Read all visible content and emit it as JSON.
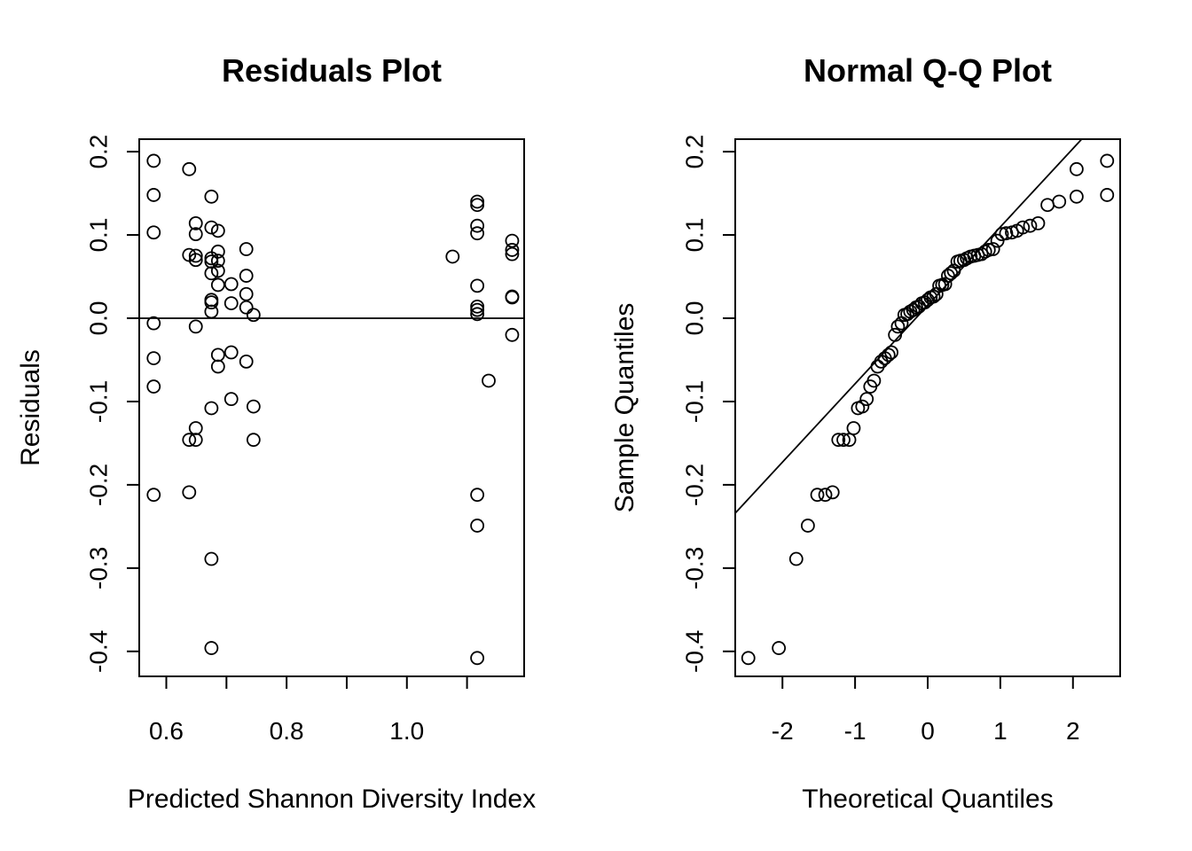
{
  "chart_data": [
    {
      "type": "scatter",
      "title": "Residuals Plot",
      "xlabel": "Predicted Shannon Diversity Index",
      "ylabel": "Residuals",
      "xlim": [
        0.555,
        1.195
      ],
      "ylim": [
        -0.43,
        0.215
      ],
      "xticks": [
        0.6,
        0.7,
        0.8,
        0.9,
        1.0,
        1.1
      ],
      "xtick_labels": [
        "0.6",
        "",
        "0.8",
        "",
        "1.0",
        ""
      ],
      "yticks": [
        -0.4,
        -0.3,
        -0.2,
        -0.1,
        0.0,
        0.1,
        0.2
      ],
      "ytick_labels": [
        "-0.4",
        "-0.3",
        "-0.2",
        "-0.1",
        "0.0",
        "0.1",
        "0.2"
      ],
      "reference_line": {
        "type": "horizontal",
        "y": 0
      },
      "grid": false,
      "points": [
        [
          0.579,
          0.189
        ],
        [
          0.579,
          0.148
        ],
        [
          0.579,
          0.103
        ],
        [
          0.579,
          -0.006
        ],
        [
          0.579,
          -0.048
        ],
        [
          0.579,
          -0.082
        ],
        [
          0.579,
          -0.212
        ],
        [
          0.638,
          0.179
        ],
        [
          0.638,
          0.076
        ],
        [
          0.638,
          -0.146
        ],
        [
          0.638,
          -0.209
        ],
        [
          0.649,
          0.114
        ],
        [
          0.649,
          0.101
        ],
        [
          0.649,
          0.075
        ],
        [
          0.649,
          0.07
        ],
        [
          0.649,
          -0.01
        ],
        [
          0.649,
          -0.132
        ],
        [
          0.649,
          -0.146
        ],
        [
          0.675,
          0.146
        ],
        [
          0.675,
          0.109
        ],
        [
          0.675,
          0.072
        ],
        [
          0.675,
          0.068
        ],
        [
          0.675,
          0.054
        ],
        [
          0.675,
          0.022
        ],
        [
          0.675,
          0.019
        ],
        [
          0.675,
          0.008
        ],
        [
          0.675,
          -0.108
        ],
        [
          0.675,
          -0.289
        ],
        [
          0.675,
          -0.396
        ],
        [
          0.686,
          0.105
        ],
        [
          0.686,
          0.08
        ],
        [
          0.686,
          0.069
        ],
        [
          0.686,
          0.057
        ],
        [
          0.686,
          0.04
        ],
        [
          0.686,
          -0.044
        ],
        [
          0.686,
          -0.058
        ],
        [
          0.708,
          0.041
        ],
        [
          0.708,
          0.018
        ],
        [
          0.708,
          -0.041
        ],
        [
          0.708,
          -0.097
        ],
        [
          0.733,
          0.083
        ],
        [
          0.733,
          0.051
        ],
        [
          0.733,
          0.029
        ],
        [
          0.733,
          0.013
        ],
        [
          0.733,
          -0.052
        ],
        [
          0.745,
          0.004
        ],
        [
          0.745,
          -0.106
        ],
        [
          0.745,
          -0.146
        ],
        [
          1.076,
          0.074
        ],
        [
          1.117,
          0.14
        ],
        [
          1.117,
          0.136
        ],
        [
          1.117,
          0.111
        ],
        [
          1.117,
          0.102
        ],
        [
          1.117,
          0.039
        ],
        [
          1.117,
          0.014
        ],
        [
          1.117,
          0.01
        ],
        [
          1.117,
          0.005
        ],
        [
          1.117,
          -0.212
        ],
        [
          1.117,
          -0.249
        ],
        [
          1.117,
          -0.408
        ],
        [
          1.136,
          -0.075
        ],
        [
          1.175,
          0.093
        ],
        [
          1.175,
          0.082
        ],
        [
          1.175,
          0.077
        ],
        [
          1.175,
          0.026
        ],
        [
          1.175,
          0.025
        ],
        [
          1.175,
          -0.02
        ]
      ]
    },
    {
      "type": "scatter",
      "title": "Normal Q-Q Plot",
      "xlabel": "Theoretical Quantiles",
      "ylabel": "Sample Quantiles",
      "xlim": [
        -2.65,
        2.65
      ],
      "ylim": [
        -0.43,
        0.215
      ],
      "xticks": [
        -2,
        -1,
        0,
        1,
        2
      ],
      "xtick_labels": [
        "-2",
        "-1",
        "0",
        "1",
        "2"
      ],
      "yticks": [
        -0.4,
        -0.3,
        -0.2,
        -0.1,
        0.0,
        0.1,
        0.2
      ],
      "ytick_labels": [
        "-0.4",
        "-0.3",
        "-0.2",
        "-0.1",
        "0.0",
        "0.1",
        "0.2"
      ],
      "reference_line": {
        "type": "line",
        "x1": -2.65,
        "y1": -0.234,
        "x2": 2.12,
        "y2": 0.215
      },
      "grid": false,
      "points": [
        [
          -2.47,
          -0.408
        ],
        [
          -2.05,
          -0.396
        ],
        [
          -1.81,
          -0.289
        ],
        [
          -1.65,
          -0.249
        ],
        [
          -1.52,
          -0.212
        ],
        [
          -1.41,
          -0.212
        ],
        [
          -1.31,
          -0.209
        ],
        [
          -1.23,
          -0.146
        ],
        [
          -1.16,
          -0.146
        ],
        [
          -1.08,
          -0.146
        ],
        [
          -1.02,
          -0.132
        ],
        [
          -0.96,
          -0.108
        ],
        [
          -0.9,
          -0.106
        ],
        [
          -0.84,
          -0.097
        ],
        [
          -0.79,
          -0.082
        ],
        [
          -0.74,
          -0.075
        ],
        [
          -0.69,
          -0.058
        ],
        [
          -0.64,
          -0.052
        ],
        [
          -0.59,
          -0.048
        ],
        [
          -0.54,
          -0.044
        ],
        [
          -0.5,
          -0.041
        ],
        [
          -0.45,
          -0.02
        ],
        [
          -0.41,
          -0.01
        ],
        [
          -0.36,
          -0.006
        ],
        [
          -0.32,
          0.004
        ],
        [
          -0.28,
          0.005
        ],
        [
          -0.24,
          0.008
        ],
        [
          -0.2,
          0.01
        ],
        [
          -0.16,
          0.013
        ],
        [
          -0.12,
          0.014
        ],
        [
          -0.08,
          0.018
        ],
        [
          -0.04,
          0.019
        ],
        [
          0.0,
          0.022
        ],
        [
          0.04,
          0.025
        ],
        [
          0.08,
          0.026
        ],
        [
          0.12,
          0.029
        ],
        [
          0.16,
          0.039
        ],
        [
          0.2,
          0.04
        ],
        [
          0.24,
          0.041
        ],
        [
          0.28,
          0.051
        ],
        [
          0.32,
          0.054
        ],
        [
          0.36,
          0.057
        ],
        [
          0.41,
          0.068
        ],
        [
          0.45,
          0.069
        ],
        [
          0.5,
          0.07
        ],
        [
          0.54,
          0.072
        ],
        [
          0.59,
          0.074
        ],
        [
          0.64,
          0.075
        ],
        [
          0.69,
          0.076
        ],
        [
          0.74,
          0.077
        ],
        [
          0.79,
          0.08
        ],
        [
          0.84,
          0.082
        ],
        [
          0.9,
          0.083
        ],
        [
          0.96,
          0.093
        ],
        [
          1.02,
          0.101
        ],
        [
          1.08,
          0.102
        ],
        [
          1.16,
          0.103
        ],
        [
          1.23,
          0.105
        ],
        [
          1.31,
          0.109
        ],
        [
          1.41,
          0.111
        ],
        [
          1.52,
          0.114
        ],
        [
          1.65,
          0.136
        ],
        [
          1.81,
          0.14
        ],
        [
          2.05,
          0.146
        ],
        [
          2.47,
          0.148
        ],
        [
          2.05,
          0.179
        ],
        [
          2.47,
          0.189
        ]
      ]
    }
  ]
}
